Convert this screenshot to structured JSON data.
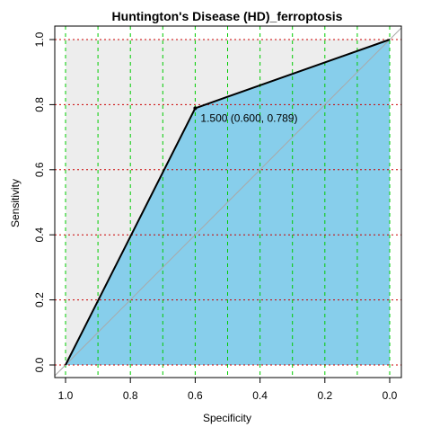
{
  "chart_data": {
    "type": "line",
    "title": "Huntington's Disease (HD)_ferroptosis",
    "xlabel": "Specificity",
    "ylabel": "Sensitivity",
    "xlim": [
      1.0,
      0.0
    ],
    "ylim": [
      0.0,
      1.0
    ],
    "x_reversed": true,
    "x_ticks": [
      "1.0",
      "0.8",
      "0.6",
      "0.4",
      "0.2",
      "0.0"
    ],
    "y_ticks": [
      "0.0",
      "0.2",
      "0.4",
      "0.6",
      "0.8",
      "1.0"
    ],
    "series": [
      {
        "values": [
          {
            "specificity": 1.0,
            "sensitivity": 0.0
          },
          {
            "specificity": 0.6,
            "sensitivity": 0.789
          },
          {
            "specificity": 0.0,
            "sensitivity": 1.0
          }
        ]
      }
    ],
    "threshold_point": {
      "specificity": 0.6,
      "sensitivity": 0.789
    },
    "annotation": "1.500 (0.600, 0.789)",
    "reference_line": "diagonal",
    "grid": true,
    "vertical_grid": [
      1.0,
      0.9,
      0.8,
      0.7,
      0.6,
      0.5,
      0.4,
      0.3,
      0.2,
      0.1,
      0.0
    ],
    "horizontal_grid": [
      0.0,
      0.2,
      0.4,
      0.6,
      0.8,
      1.0
    ],
    "colors": {
      "auc_fill": "#87CEEB",
      "upper_fill": "#EDEDED",
      "roc_line": "#000000",
      "diagonal": "#A9A9A9",
      "grid_x": "#00CC00",
      "grid_y": "#CC0000"
    }
  }
}
